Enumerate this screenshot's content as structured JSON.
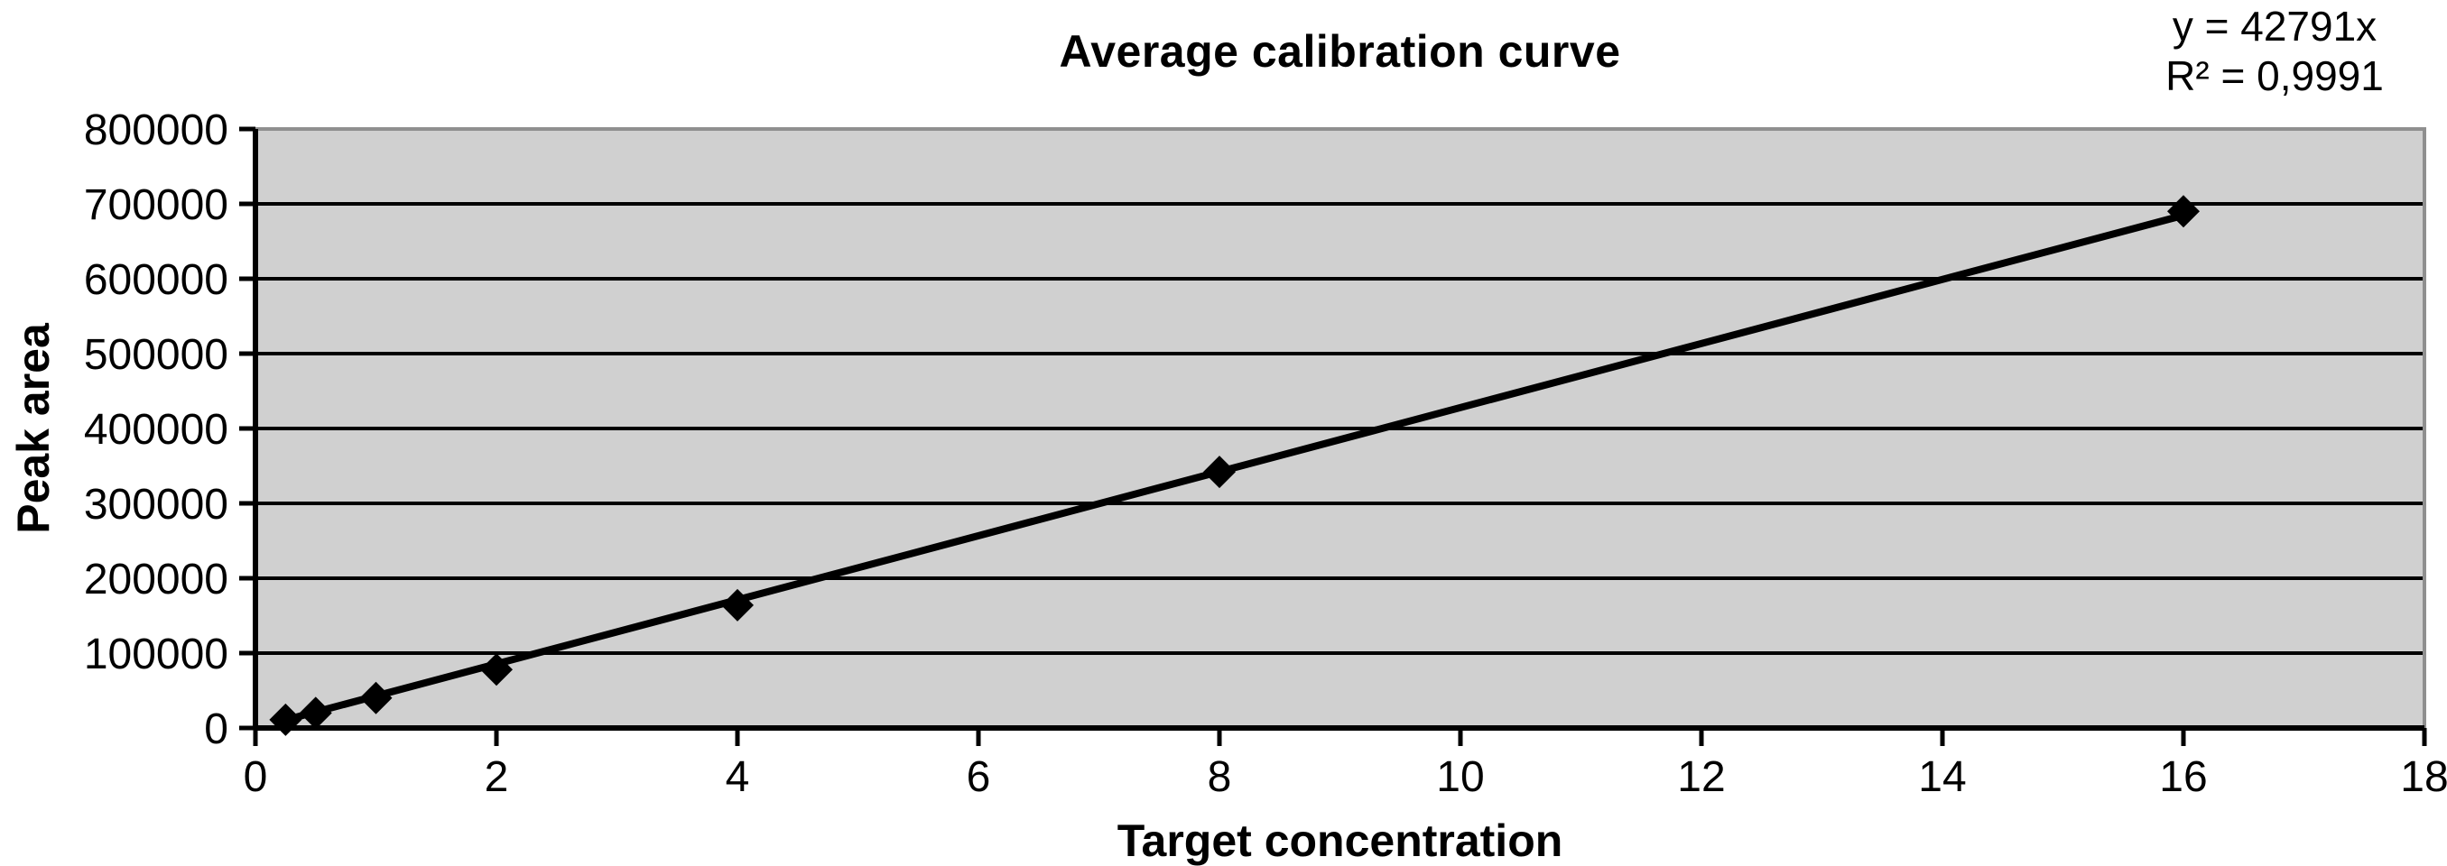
{
  "chart": {
    "title": "Average calibration curve",
    "equation": {
      "line1": "y = 42791x",
      "line2": "R² = 0,9991"
    },
    "x_axis_title": "Target concentration",
    "y_axis_title": "Peak area"
  },
  "chart_data": {
    "type": "scatter",
    "title": "Average calibration curve",
    "xlabel": "Target concentration",
    "ylabel": "Peak area",
    "xlim": [
      0,
      18
    ],
    "ylim": [
      0,
      800000
    ],
    "x_ticks": [
      0,
      2,
      4,
      6,
      8,
      10,
      12,
      14,
      16,
      18
    ],
    "y_ticks": [
      0,
      100000,
      200000,
      300000,
      400000,
      500000,
      600000,
      700000,
      800000
    ],
    "grid": "horizontal-y-only",
    "legend": "none",
    "annotations": [
      "y = 42791x",
      "R² = 0,9991"
    ],
    "series": [
      {
        "name": "Average calibration curve",
        "marker": "diamond",
        "color": "#000000",
        "points": [
          [
            0.25,
            11000
          ],
          [
            0.5,
            20000
          ],
          [
            1,
            40000
          ],
          [
            2,
            78000
          ],
          [
            4,
            164000
          ],
          [
            8,
            342000
          ],
          [
            16,
            690000
          ]
        ]
      }
    ],
    "trendline": {
      "label": "y = 42791x",
      "slope": 42791,
      "intercept": 0,
      "r_squared_label": "R² = 0,9991",
      "x_start": 0.25,
      "x_end": 16,
      "color": "#000000"
    },
    "colors": {
      "plot_background": "#d0d0d0",
      "plot_border": "#8f8f8f",
      "axis": "#000000",
      "text": "#000000"
    }
  }
}
